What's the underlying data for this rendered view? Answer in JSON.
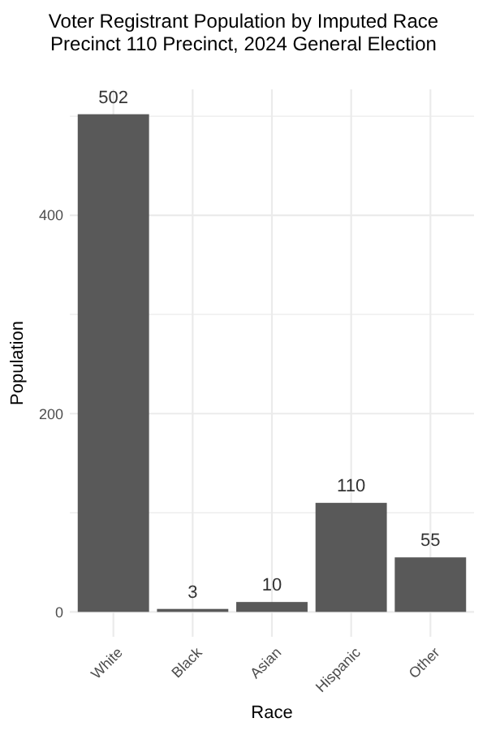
{
  "chart_data": {
    "type": "bar",
    "title": "Voter Registrant Population by Imputed Race",
    "subtitle": "Precinct 110 Precinct,  2024 General Election",
    "xlabel": "Race",
    "ylabel": "Population",
    "categories": [
      "White",
      "Black",
      "Asian",
      "Hispanic",
      "Other"
    ],
    "values": [
      502,
      3,
      10,
      110,
      55
    ],
    "color": "#595959",
    "data_labels": true,
    "ylim": [
      -25.1,
      527.1
    ],
    "yticks": [
      0,
      {
        "value": 100,
        "label": null
      },
      200,
      {
        "value": 300,
        "label": null
      },
      400,
      {
        "value": 500,
        "label": null
      }
    ],
    "grid": true
  }
}
